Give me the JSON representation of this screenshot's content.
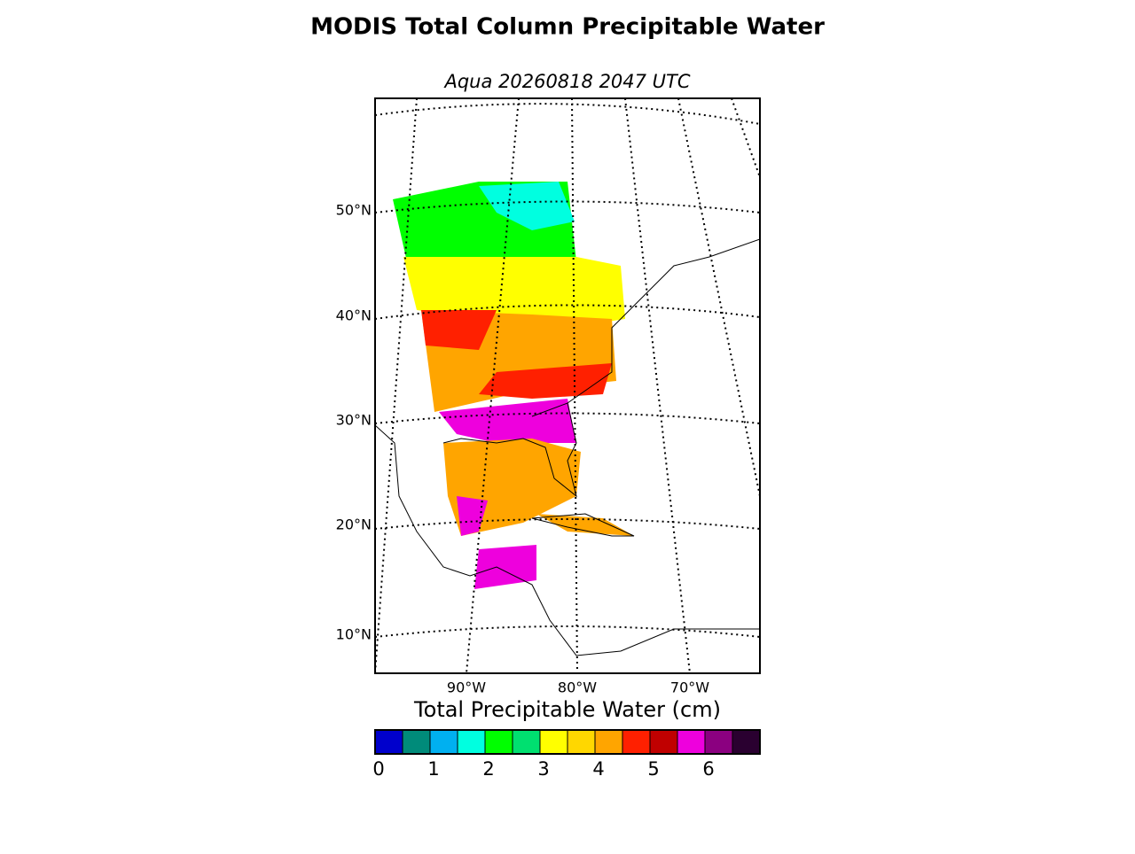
{
  "header": {
    "title": "MODIS Total Column Precipitable Water",
    "subtitle": "Aqua 20260818 2047 UTC"
  },
  "map": {
    "lat_labels": [
      "50°N",
      "40°N",
      "30°N",
      "20°N",
      "10°N"
    ],
    "lon_labels": [
      "90°W",
      "80°W",
      "70°W"
    ]
  },
  "colorbar": {
    "label": "Total Precipitable Water (cm)",
    "bins": [
      0,
      0.5,
      1,
      1.5,
      2,
      2.5,
      3,
      3.5,
      4,
      4.5,
      5,
      5.5,
      6,
      6.5,
      7
    ],
    "colors": [
      "#0000cc",
      "#008b7a",
      "#00b0f0",
      "#00ffe0",
      "#00ff00",
      "#00e070",
      "#ffff00",
      "#ffd700",
      "#ffa500",
      "#ff2000",
      "#c00000",
      "#ee00dd",
      "#8b0080",
      "#2a0030"
    ],
    "ticks": [
      0,
      1,
      2,
      3,
      4,
      5,
      6
    ]
  }
}
